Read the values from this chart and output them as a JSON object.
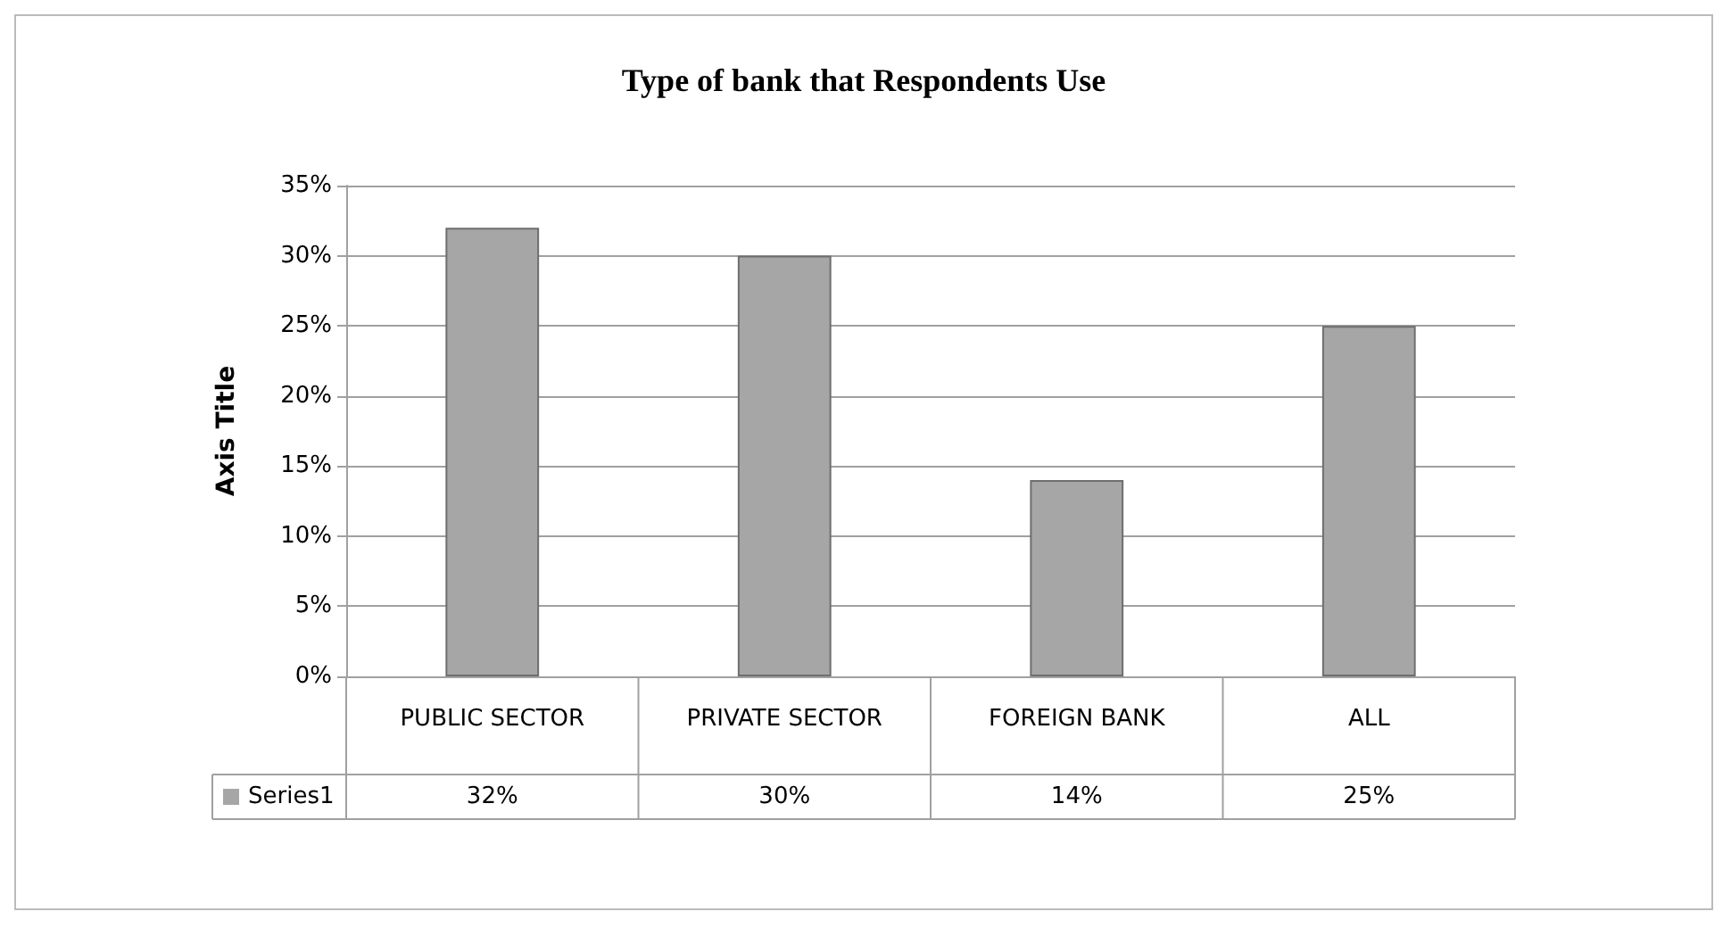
{
  "chart_data": {
    "type": "bar",
    "title": "Type of bank that Respondents Use",
    "ylabel": "Axis Title",
    "categories": [
      "PUBLIC SECTOR",
      "PRIVATE SECTOR",
      "FOREIGN BANK",
      "ALL"
    ],
    "series": [
      {
        "name": "Series1",
        "color": "#a6a6a6",
        "values": [
          32,
          30,
          14,
          25
        ],
        "value_labels": [
          "32%",
          "30%",
          "14%",
          "25%"
        ]
      }
    ],
    "ylim": [
      0,
      35
    ],
    "yticks": [
      {
        "value": 0,
        "label": "0%"
      },
      {
        "value": 5,
        "label": "5%"
      },
      {
        "value": 10,
        "label": "10%"
      },
      {
        "value": 15,
        "label": "15%"
      },
      {
        "value": 20,
        "label": "20%"
      },
      {
        "value": 25,
        "label": "25%"
      },
      {
        "value": 30,
        "label": "30%"
      },
      {
        "value": 35,
        "label": "35%"
      }
    ],
    "grid": "y",
    "legend": "bottom"
  }
}
